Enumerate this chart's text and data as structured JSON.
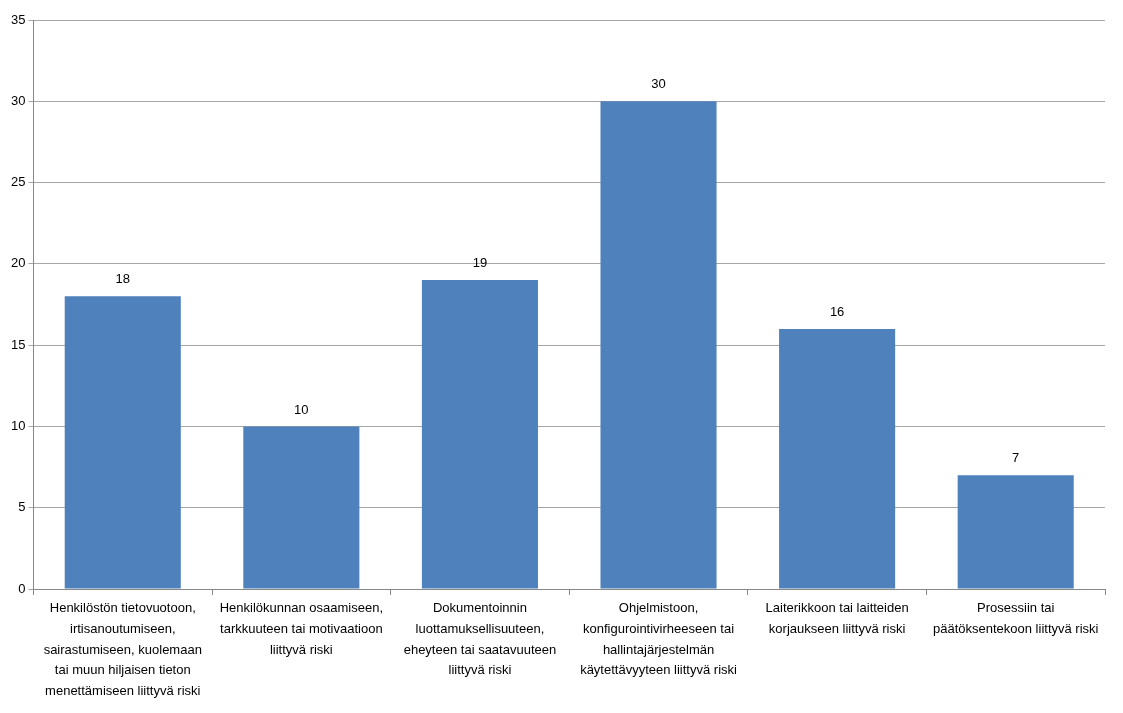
{
  "chart_data": {
    "type": "bar",
    "categories": [
      "Henkilöstön tietovuotoon, irtisanoutumiseen, sairastumiseen, kuolemaan tai muun hiljaisen tieton menettämiseen liittyvä riski",
      "Henkilökunnan osaamiseen, tarkkuuteen tai motivaatioon  liittyvä riski",
      "Dokumentoinnin luottamuksellisuuteen, eheyteen tai saatavuuteen liittyvä riski",
      "Ohjelmistoon, konfigurointivirheeseen tai hallintajärjestelmän käytettävyyteen liittyvä riski",
      "Laiterikkoon tai laitteiden korjaukseen liittyvä riski",
      "Prosessiin tai päätöksentekoon liittyvä riski"
    ],
    "values": [
      18,
      10,
      19,
      30,
      16,
      7
    ],
    "color": "#4f81bd",
    "ylim": [
      0,
      35
    ],
    "yticks": [
      0,
      5,
      10,
      15,
      20,
      25,
      30,
      35
    ],
    "grid": "y",
    "data_labels": true,
    "legend": false
  }
}
